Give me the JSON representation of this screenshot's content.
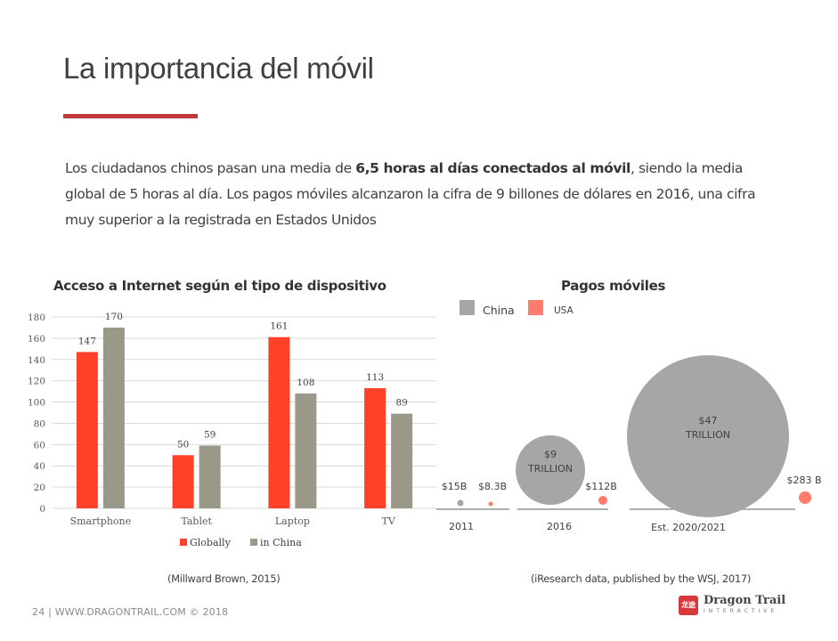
{
  "slide": {
    "title": "La importancia del móvil",
    "accent_color": "#c0393b",
    "intro_pre": "Los ciudadanos chinos pasan una media de ",
    "intro_bold": "6,5 horas al días conectados al móvil",
    "intro_post": ", siendo la media global de 5 horas al día. Los pagos móviles alcanzaron la cifra de 9 billones de dólares en 2016, una cifra muy superior a la registrada en Estados Unidos",
    "footer": "24  |  WWW.DRAGONTRAIL.COM ©  2018",
    "logo": {
      "name": "Dragon Trail",
      "sub": "INTERACTIVE",
      "mark": "龙\n途"
    }
  },
  "chart_data": [
    {
      "type": "bar",
      "title": "Acceso a Internet según el tipo de dispositivo",
      "categories": [
        "Smartphone",
        "Tablet",
        "Laptop",
        "TV"
      ],
      "series": [
        {
          "name": "Globally",
          "color": "#ff4127",
          "values": [
            147,
            50,
            161,
            113
          ]
        },
        {
          "name": "in China",
          "color": "#999889",
          "values": [
            170,
            59,
            108,
            89
          ]
        }
      ],
      "ylim": [
        0,
        180
      ],
      "yticks": [
        0,
        20,
        40,
        60,
        80,
        100,
        120,
        140,
        160,
        180
      ],
      "grid": true,
      "legend": "bottom",
      "xlabel": "",
      "ylabel": "",
      "source": "(Millward Brown, 2015)"
    },
    {
      "type": "bubble",
      "title": "Pagos móviles",
      "legend": "top-left",
      "series": [
        {
          "name": "China",
          "color": "#a6a6a6"
        },
        {
          "name": "USA",
          "color": "#ff7b6b"
        }
      ],
      "groups": [
        {
          "label": "2011",
          "china": {
            "value_usd_billion": 15,
            "label": "$15B"
          },
          "usa": {
            "value_usd_billion": 8.3,
            "label": "$8.3B"
          }
        },
        {
          "label": "2016",
          "china": {
            "value_usd_billion": 9000,
            "label": "$9\nTRILLION"
          },
          "usa": {
            "value_usd_billion": 112,
            "label": "$112B"
          }
        },
        {
          "label": "Est. 2020/2021",
          "china": {
            "value_usd_billion": 47000,
            "label": "$47\nTRILLION"
          },
          "usa": {
            "value_usd_billion": 283,
            "label": "$283 B"
          }
        }
      ],
      "source": "(iResearch data, published by the WSJ, 2017)"
    }
  ]
}
